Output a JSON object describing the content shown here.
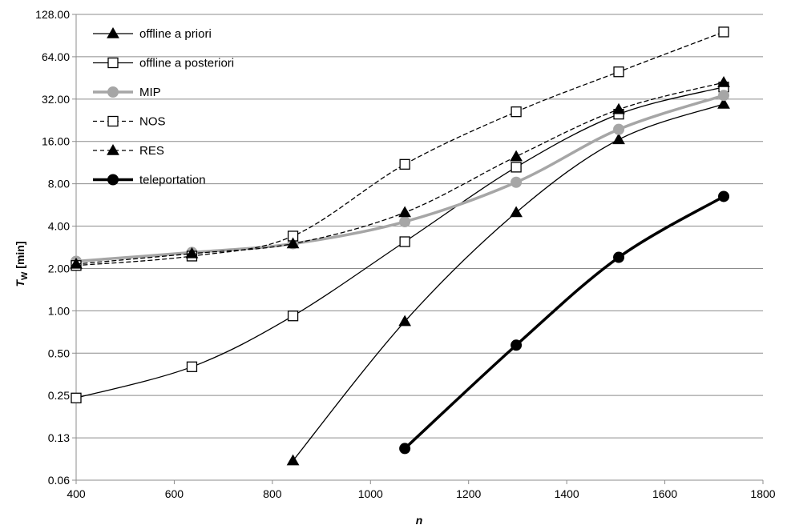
{
  "chart_data": {
    "type": "line",
    "xlabel": "n",
    "ylabel": {
      "main": "T",
      "sub": "W",
      "unit": " [min]"
    },
    "xlim": [
      400,
      1800
    ],
    "ylim": [
      0.0625,
      128
    ],
    "yscale": "log2",
    "x_ticks": [
      400,
      600,
      800,
      1000,
      1200,
      1400,
      1600,
      1800
    ],
    "y_ticks": [
      0.0625,
      0.125,
      0.25,
      0.5,
      1,
      2,
      4,
      8,
      16,
      32,
      64,
      128
    ],
    "y_tick_labels": [
      "0.06",
      "0.13",
      "0.25",
      "0.50",
      "1.00",
      "2.00",
      "4.00",
      "8.00",
      "16.00",
      "32.00",
      "64.00",
      "128.00"
    ],
    "grid": "horizontal",
    "legend": "top-left",
    "series": [
      {
        "name": "offline a priori",
        "color": "#000000",
        "dash": "solid",
        "width": 1.3,
        "marker": "triangle-filled",
        "x": [
          842,
          1070,
          1297,
          1506,
          1720
        ],
        "y": [
          0.086,
          0.84,
          5.0,
          16.5,
          29.5
        ]
      },
      {
        "name": "offline a posteriori",
        "color": "#000000",
        "dash": "solid",
        "width": 1.3,
        "marker": "square-open",
        "x": [
          400,
          636,
          842,
          1070,
          1297,
          1506,
          1720
        ],
        "y": [
          0.24,
          0.4,
          0.92,
          3.1,
          10.5,
          25.0,
          39.0
        ]
      },
      {
        "name": "MIP",
        "color": "#a6a6a6",
        "dash": "solid",
        "width": 3.5,
        "marker": "circle-filled",
        "x": [
          400,
          636,
          842,
          1070,
          1297,
          1506,
          1720
        ],
        "y": [
          2.25,
          2.6,
          3.0,
          4.3,
          8.2,
          19.5,
          34.0
        ]
      },
      {
        "name": "NOS",
        "color": "#000000",
        "dash": "dashed",
        "width": 1.3,
        "marker": "square-open",
        "x": [
          400,
          636,
          842,
          1070,
          1297,
          1506,
          1720
        ],
        "y": [
          2.1,
          2.45,
          3.4,
          11.0,
          26.0,
          50.0,
          96.0
        ]
      },
      {
        "name": "RES",
        "color": "#000000",
        "dash": "dashed",
        "width": 1.3,
        "marker": "triangle-filled",
        "x": [
          400,
          636,
          842,
          1070,
          1297,
          1506,
          1720
        ],
        "y": [
          2.15,
          2.55,
          3.0,
          5.0,
          12.5,
          27.0,
          42.0
        ]
      },
      {
        "name": "teleportation",
        "color": "#000000",
        "dash": "solid",
        "width": 3.5,
        "marker": "circle-filled",
        "x": [
          1070,
          1297,
          1506,
          1720
        ],
        "y": [
          0.105,
          0.57,
          2.4,
          6.5
        ]
      }
    ]
  }
}
